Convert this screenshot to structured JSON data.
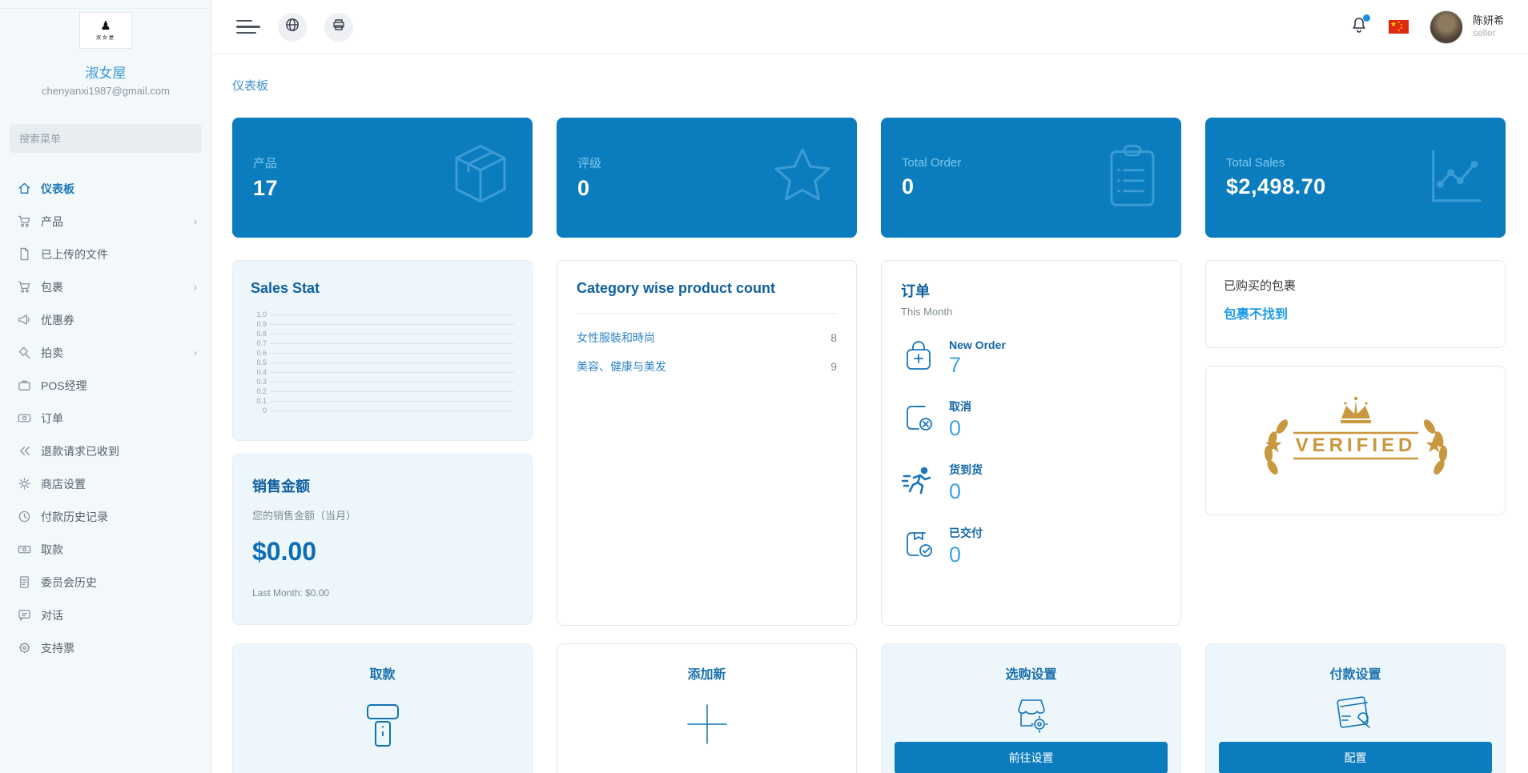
{
  "colors": {
    "primary": "#0b7dbf",
    "card_light": "#edf6fb",
    "link": "#1e9be9",
    "gold": "#c9973f",
    "flag_red": "#de2910"
  },
  "shop": {
    "name": "淑女屋",
    "email": "chenyanxi1987@gmail.com",
    "logo_glyph": "♟",
    "logo_text": "淑女屋"
  },
  "sidebar": {
    "search_placeholder": "搜索菜单",
    "items": [
      {
        "label": "仪表板",
        "icon": "home-icon",
        "active": true,
        "has_submenu": false
      },
      {
        "label": "产品",
        "icon": "cart-icon",
        "active": false,
        "has_submenu": true
      },
      {
        "label": "已上传的文件",
        "icon": "file-icon",
        "active": false,
        "has_submenu": false
      },
      {
        "label": "包裹",
        "icon": "cart-icon",
        "active": false,
        "has_submenu": true
      },
      {
        "label": "优惠券",
        "icon": "megaphone-icon",
        "active": false,
        "has_submenu": false
      },
      {
        "label": "拍卖",
        "icon": "gavel-icon",
        "active": false,
        "has_submenu": true
      },
      {
        "label": "POS经理",
        "icon": "briefcase-icon",
        "active": false,
        "has_submenu": false
      },
      {
        "label": "订单",
        "icon": "cash-icon",
        "active": false,
        "has_submenu": false
      },
      {
        "label": "退款请求已收到",
        "icon": "refund-icon",
        "active": false,
        "has_submenu": false
      },
      {
        "label": "商店设置",
        "icon": "gear-icon",
        "active": false,
        "has_submenu": false
      },
      {
        "label": "付款历史记录",
        "icon": "clock-icon",
        "active": false,
        "has_submenu": false
      },
      {
        "label": "取款",
        "icon": "money-icon",
        "active": false,
        "has_submenu": false
      },
      {
        "label": "委员会历史",
        "icon": "document-icon",
        "active": false,
        "has_submenu": false
      },
      {
        "label": "对话",
        "icon": "chat-icon",
        "active": false,
        "has_submenu": false
      },
      {
        "label": "支持票",
        "icon": "ticket-icon",
        "active": false,
        "has_submenu": false
      }
    ],
    "chevron": "›"
  },
  "header": {
    "user_name": "陈妍希",
    "user_role": "seller"
  },
  "page": {
    "title": "仪表板"
  },
  "stat_cards": [
    {
      "label": "产品",
      "value": "17",
      "icon": "box-icon"
    },
    {
      "label": "评级",
      "value": "0",
      "icon": "star-icon"
    },
    {
      "label": "Total Order",
      "value": "0",
      "icon": "clipboard-icon"
    },
    {
      "label": "Total Sales",
      "value": "$2,498.70",
      "icon": "chart-icon"
    }
  ],
  "sales_stat_card": {
    "title": "Sales Stat"
  },
  "chart_data": {
    "type": "line",
    "title": "Sales Stat",
    "x": [],
    "series": [],
    "categories": [],
    "values": [],
    "ylim": [
      0,
      1.0
    ],
    "ytick_labels": [
      "1.0",
      "0.9",
      "0.8",
      "0.7",
      "0.6",
      "0.5",
      "0.4",
      "0.3",
      "0.2",
      "0.1",
      "0"
    ],
    "grid": true,
    "legend": false
  },
  "category_card": {
    "title": "Category wise product count",
    "rows": [
      {
        "label": "女性服裝和時尚",
        "count": "8"
      },
      {
        "label": "美容、健康与美发",
        "count": "9"
      }
    ]
  },
  "orders_card": {
    "title": "订单",
    "subtitle": "This Month",
    "rows": [
      {
        "label": "New Order",
        "value": "7",
        "icon": "bag-plus-icon"
      },
      {
        "label": "取消",
        "value": "0",
        "icon": "box-cancel-icon"
      },
      {
        "label": "货到货",
        "value": "0",
        "icon": "runner-icon"
      },
      {
        "label": "已交付",
        "value": "0",
        "icon": "box-check-icon"
      }
    ]
  },
  "package_card": {
    "title": "已购买的包裹",
    "link": "包裹不找到"
  },
  "verified_badge": {
    "text": "VERIFIED",
    "star": "★"
  },
  "sales_amount_card": {
    "title": "销售金额",
    "subtitle": "您的销售金额（当月）",
    "amount": "$0.00",
    "last_month": "Last Month: $0.00"
  },
  "action_cards": {
    "withdraw": {
      "title": "取款",
      "icon": "card-reader-icon"
    },
    "add_new": {
      "title": "添加新",
      "icon": "plus-icon"
    },
    "shop_settings": {
      "title": "选购设置",
      "icon": "shop-gear-icon",
      "button": "前往设置"
    },
    "payment_settings": {
      "title": "付款设置",
      "icon": "card-wrench-icon",
      "button": "配置"
    }
  }
}
